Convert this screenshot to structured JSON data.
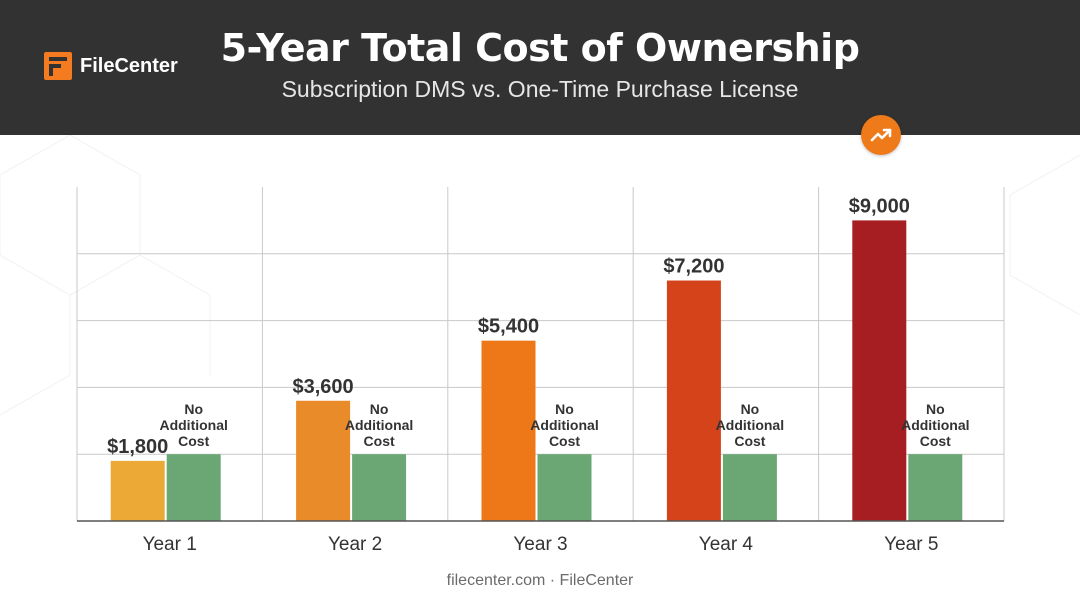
{
  "brand": {
    "logo_text": "FileCenter",
    "logo_icon": "filecenter-logo-icon",
    "accent": "#f47b20"
  },
  "header": {
    "title": "5-Year Total Cost of Ownership",
    "subtitle": "Subscription DMS vs. One-Time Purchase License"
  },
  "footer": {
    "text": "filecenter.com · FileCenter"
  },
  "trend_badge": {
    "icon": "trending-up-icon",
    "color": "#ee7a1a"
  },
  "chart_data": {
    "type": "bar",
    "categories": [
      "Year 1",
      "Year 2",
      "Year 3",
      "Year 4",
      "Year 5"
    ],
    "series": [
      {
        "values": [
          1800,
          3600,
          5400,
          7200,
          9000
        ],
        "data_labels": [
          "$1,800",
          "$3,600",
          "$5,400",
          "$7,200",
          "$9,000"
        ],
        "colors": [
          "#eda935",
          "#ea8b2a",
          "#ee7718",
          "#d4431a",
          "#a61d22"
        ]
      },
      {
        "values": [
          2000,
          2000,
          2000,
          2000,
          2000
        ],
        "data_labels": [
          "No Additional Cost",
          "No Additional Cost",
          "No Additional Cost",
          "No Additional Cost",
          "No Additional Cost"
        ],
        "color": "#6aa774"
      }
    ],
    "ylim": [
      0,
      10000
    ],
    "grid": true,
    "legend": "none"
  }
}
